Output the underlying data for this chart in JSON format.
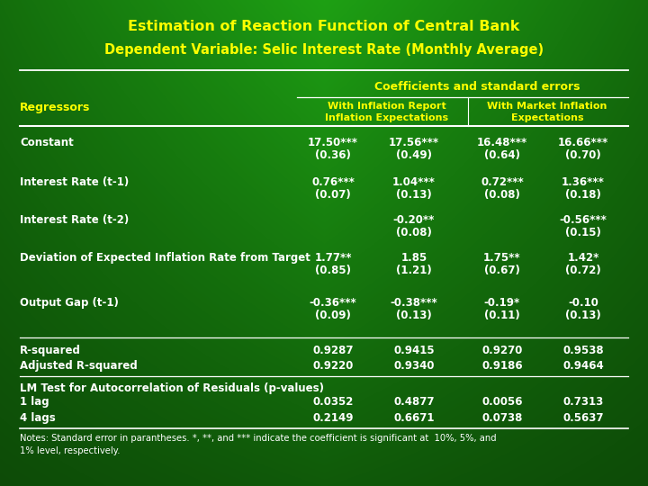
{
  "title1": "Estimation of Reaction Function of Central Bank",
  "title2": "Dependent Variable: Selic Interest Rate (Monthly Average)",
  "coeff_header": "Coefficients and standard errors",
  "sub_header1": "With Inflation Report  With Market Inflation",
  "sub_header1a": "With Inflation Report",
  "sub_header1b": "Inflation Expectations",
  "sub_header2a": "With Market Inflation",
  "sub_header2b": "Expectations",
  "regressors_label": "Regressors",
  "rows": [
    {
      "label": "Constant",
      "c1": "17.50***",
      "c1b": "(0.36)",
      "c2": "17.56***",
      "c2b": "(0.49)",
      "c3": "16.48***",
      "c3b": "(0.64)",
      "c4": "16.66***",
      "c4b": "(0.70)"
    },
    {
      "label": "Interest Rate (t-1)",
      "c1": "0.76***",
      "c1b": "(0.07)",
      "c2": "1.04***",
      "c2b": "(0.13)",
      "c3": "0.72***",
      "c3b": "(0.08)",
      "c4": "1.36***",
      "c4b": "(0.18)"
    },
    {
      "label": "Interest Rate (t-2)",
      "c1": "",
      "c1b": "",
      "c2": "-0.20**",
      "c2b": "(0.08)",
      "c3": "",
      "c3b": "",
      "c4": "-0.56***",
      "c4b": "(0.15)"
    },
    {
      "label": "Deviation of Expected Inflation Rate from Target",
      "c1": "1.77**",
      "c1b": "(0.85)",
      "c2": "1.85",
      "c2b": "(1.21)",
      "c3": "1.75**",
      "c3b": "(0.67)",
      "c4": "1.42*",
      "c4b": "(0.72)"
    },
    {
      "label": "Output Gap (t-1)",
      "c1": "-0.36***",
      "c1b": "(0.09)",
      "c2": "-0.38***",
      "c2b": "(0.13)",
      "c3": "-0.19*",
      "c3b": "(0.11)",
      "c4": "-0.10",
      "c4b": "(0.13)"
    }
  ],
  "stats_rows": [
    {
      "label": "R-squared",
      "c1": "0.9287",
      "c2": "0.9415",
      "c3": "0.9270",
      "c4": "0.9538"
    },
    {
      "label": "Adjusted R-squared",
      "c1": "0.9220",
      "c2": "0.9340",
      "c3": "0.9186",
      "c4": "0.9464"
    }
  ],
  "lm_header": "LM Test for Autocorrelation of Residuals (p-values)",
  "lm_rows": [
    {
      "label": "1 lag",
      "c1": "0.0352",
      "c2": "0.4877",
      "c3": "0.0056",
      "c4": "0.7313"
    },
    {
      "label": "4 lags",
      "c1": "0.2149",
      "c2": "0.6671",
      "c3": "0.0738",
      "c4": "0.5637"
    }
  ],
  "notes": "Notes: Standard error in parantheses. *, **, and *** indicate the coefficient is significant at  10%, 5%, and\n1% level, respectively.",
  "yellow": "#ffff00",
  "white": "#ffffff",
  "bg_dark": "#0a2a08",
  "bg_mid": "#1a6010",
  "bg_light": "#2a8818"
}
